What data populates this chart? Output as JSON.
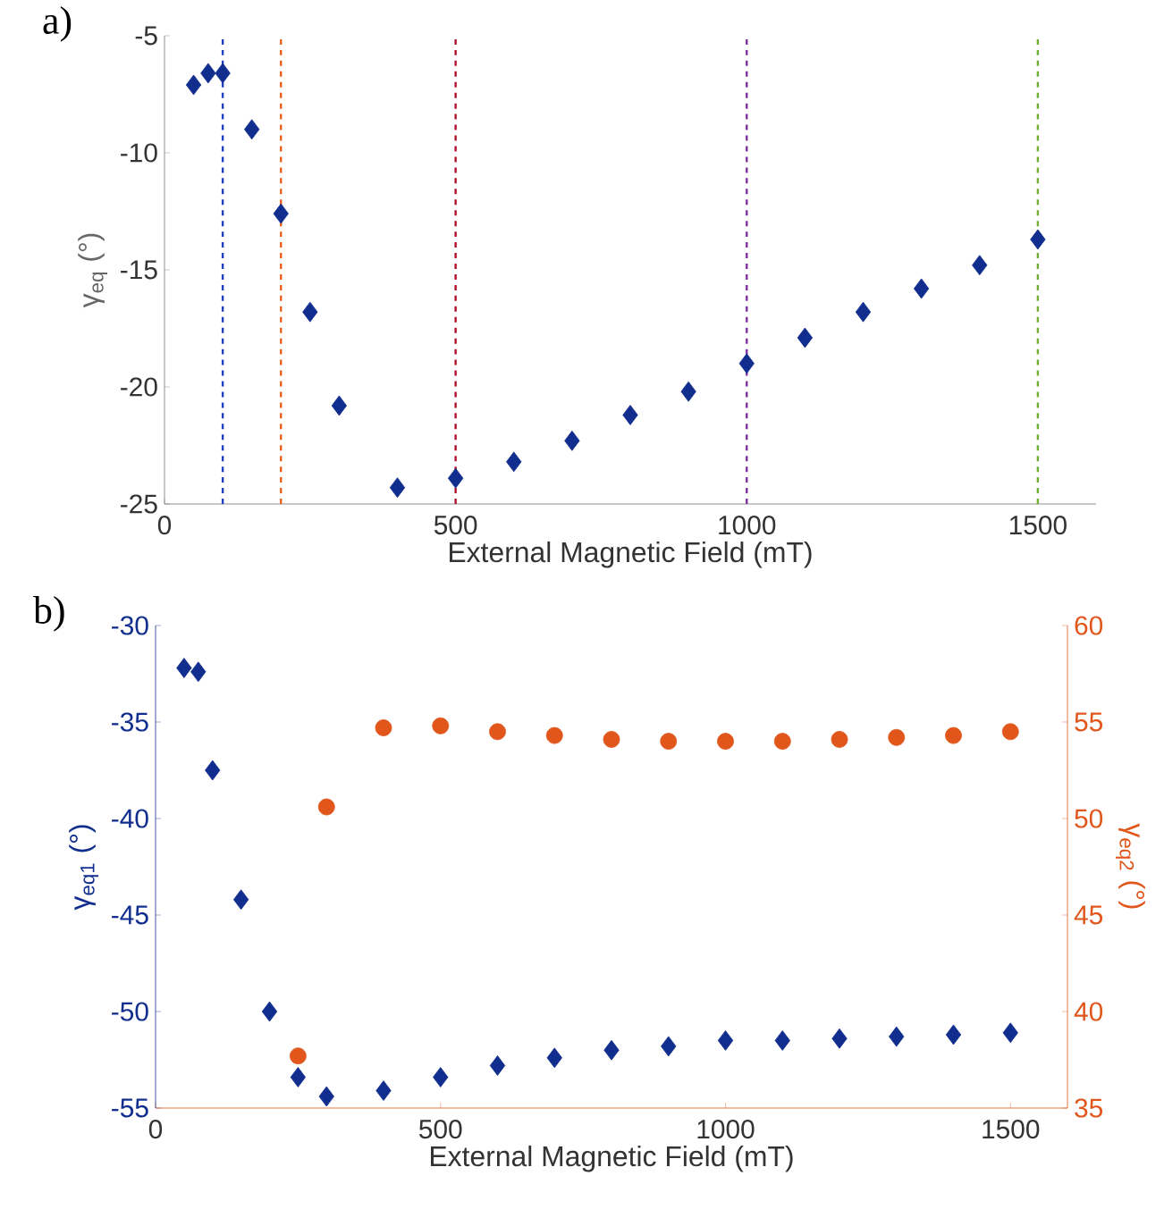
{
  "chart_data": [
    {
      "type": "scatter",
      "xlabel": "External Magnetic Field (mT)",
      "ylabel": "γ$_{eq}$ (°)",
      "annotations": [
        "a)"
      ],
      "xlim": [
        0,
        1600
      ],
      "xticks": [
        0,
        500,
        1000,
        1500
      ],
      "ylim": [
        -25,
        -5
      ],
      "yticks": [
        -25,
        -20,
        -15,
        -10,
        -5
      ],
      "series": [
        {
          "color": "#112e8e",
          "marker": "diamond",
          "x": [
            50,
            75,
            100,
            150,
            200,
            250,
            300,
            400,
            500,
            600,
            700,
            800,
            900,
            1000,
            1100,
            1200,
            1300,
            1400,
            1500
          ],
          "values": [
            -7.1,
            -6.6,
            -6.6,
            -9.0,
            -12.6,
            -16.8,
            -20.8,
            -24.3,
            -23.9,
            -23.2,
            -22.3,
            -21.2,
            -20.2,
            -19.0,
            -17.9,
            -16.8,
            -15.8,
            -14.8,
            -13.7
          ]
        }
      ],
      "ref_lines": [
        {
          "axis": "x",
          "value": 100,
          "color": "#1f3fbf",
          "line_style": "dashed"
        },
        {
          "axis": "x",
          "value": 200,
          "color": "#e8601c",
          "line_style": "dashed"
        },
        {
          "axis": "x",
          "value": 500,
          "color": "#b0102a",
          "line_style": "dashed"
        },
        {
          "axis": "x",
          "value": 1000,
          "color": "#8030a0",
          "line_style": "dashed"
        },
        {
          "axis": "x",
          "value": 1500,
          "color": "#70b030",
          "line_style": "dashed"
        }
      ]
    },
    {
      "type": "scatter",
      "xlabel": "External Magnetic Field (mT)",
      "ylabel": "γ$_{eq1}$ (°)",
      "y2label": "γ$_{eq2}$ (°)",
      "annotations": [
        "b)"
      ],
      "xlim": [
        0,
        1600
      ],
      "xticks": [
        0,
        500,
        1000,
        1500
      ],
      "ylim": [
        -55,
        -30
      ],
      "yticks": [
        -55,
        -50,
        -45,
        -40,
        -35,
        -30
      ],
      "y2lim": [
        35,
        60
      ],
      "y2ticks": [
        35,
        40,
        45,
        50,
        55,
        60
      ],
      "series": [
        {
          "color": "#112e8e",
          "marker": "diamond",
          "x": [
            50,
            75,
            100,
            150,
            200,
            250,
            300,
            400,
            500,
            600,
            700,
            800,
            900,
            1000,
            1100,
            1200,
            1300,
            1400,
            1500
          ],
          "values": [
            -32.2,
            -32.4,
            -37.5,
            -44.2,
            -50.0,
            -53.4,
            -54.4,
            -54.1,
            -53.4,
            -52.8,
            -52.4,
            -52.0,
            -51.8,
            -51.5,
            -51.5,
            -51.4,
            -51.3,
            -51.2,
            -51.1
          ]
        },
        {
          "color": "#e0561b",
          "marker": "circle",
          "axis": "y2",
          "x": [
            250,
            300,
            400,
            500,
            600,
            700,
            800,
            900,
            1000,
            1100,
            1200,
            1300,
            1400,
            1500
          ],
          "values": [
            37.7,
            50.6,
            54.7,
            54.8,
            54.5,
            54.3,
            54.1,
            54.0,
            54.0,
            54.0,
            54.1,
            54.2,
            54.3,
            54.5
          ]
        }
      ]
    }
  ]
}
